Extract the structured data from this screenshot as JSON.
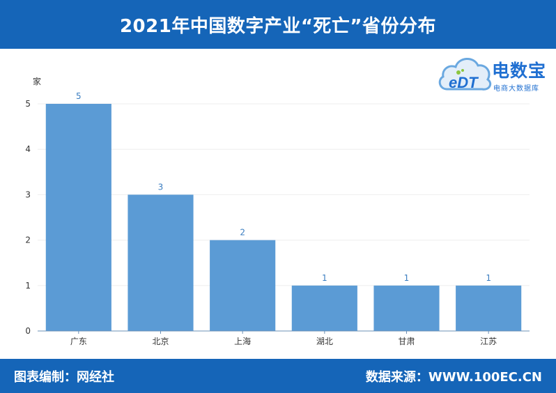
{
  "header": {
    "title": "2021年中国数字产业“死亡”省份分布"
  },
  "logo": {
    "mark": "eDT",
    "brand": "电数宝",
    "tagline": "电商大数据库"
  },
  "footer": {
    "left": "图表编制：网经社",
    "right": "数据来源：WWW.100EC.CN"
  },
  "colors": {
    "header_bg": "#1565b8",
    "bar": "#5b9bd5",
    "label": "#3a7dc0",
    "grid": "#eeeeee"
  },
  "chart_data": {
    "type": "bar",
    "title": "",
    "ylabel": "家",
    "xlabel": "",
    "categories": [
      "广东",
      "北京",
      "上海",
      "湖北",
      "甘肃",
      "江苏"
    ],
    "values": [
      5,
      3,
      2,
      1,
      1,
      1
    ],
    "ylim": [
      0,
      5
    ],
    "yticks": [
      0,
      1,
      2,
      3,
      4,
      5
    ],
    "grid": true,
    "data_labels": true
  }
}
